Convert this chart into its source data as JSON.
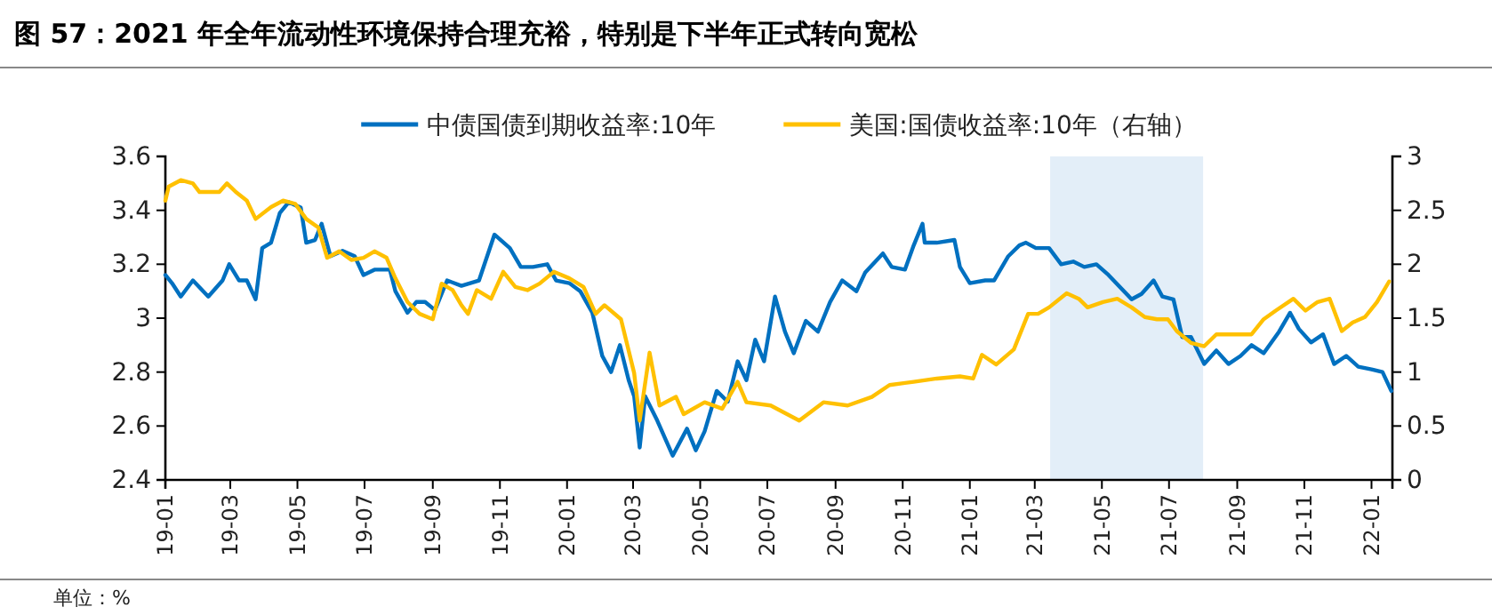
{
  "chart_data": {
    "type": "line",
    "title": "图 57：2021 年全年流动性环境保持合理充裕，特别是下半年正式转向宽松",
    "annotations": [
      "单位：%"
    ],
    "xlim": [
      "2019-01-01",
      "2022-01-20"
    ],
    "xticks": [
      {
        "value": "2019-01-01",
        "label": "19-01"
      },
      {
        "value": "2019-03-01",
        "label": "19-03"
      },
      {
        "value": "2019-05-01",
        "label": "19-05"
      },
      {
        "value": "2019-07-01",
        "label": "19-07"
      },
      {
        "value": "2019-09-01",
        "label": "19-09"
      },
      {
        "value": "2019-11-01",
        "label": "19-11"
      },
      {
        "value": "2020-01-01",
        "label": "20-01"
      },
      {
        "value": "2020-03-01",
        "label": "20-03"
      },
      {
        "value": "2020-05-01",
        "label": "20-05"
      },
      {
        "value": "2020-07-01",
        "label": "20-07"
      },
      {
        "value": "2020-09-01",
        "label": "20-09"
      },
      {
        "value": "2020-11-01",
        "label": "20-11"
      },
      {
        "value": "2021-01-01",
        "label": "21-01"
      },
      {
        "value": "2021-03-01",
        "label": "21-03"
      },
      {
        "value": "2021-05-01",
        "label": "21-05"
      },
      {
        "value": "2021-07-01",
        "label": "21-07"
      },
      {
        "value": "2021-09-01",
        "label": "21-09"
      },
      {
        "value": "2021-11-01",
        "label": "21-11"
      },
      {
        "value": "2022-01-01",
        "label": "22-01"
      }
    ],
    "ylim": [
      2.4,
      3.6
    ],
    "yticks": [
      2.4,
      2.6,
      2.8,
      3,
      3.2,
      3.4,
      3.6
    ],
    "y2lim": [
      0,
      3
    ],
    "y2ticks": [
      0,
      0.5,
      1,
      1.5,
      2,
      2.5,
      3
    ],
    "legend": "top",
    "grid": false,
    "line_style": "solid",
    "marker": "none",
    "bands": [
      {
        "axis": "x",
        "from": "2021-03-15",
        "to": "2021-08-01",
        "color": "#e3eef8"
      }
    ],
    "series": [
      {
        "name": "中债国债到期收益率:10年",
        "color": "#0070c0",
        "x": [
          "2019-01-01",
          "2019-01-07",
          "2019-01-15",
          "2019-01-26",
          "2019-02-09",
          "2019-02-22",
          "2019-02-28",
          "2019-03-09",
          "2019-03-16",
          "2019-03-24",
          "2019-03-30",
          "2019-04-07",
          "2019-04-15",
          "2019-04-23",
          "2019-05-04",
          "2019-05-09",
          "2019-05-17",
          "2019-05-23",
          "2019-05-31",
          "2019-06-11",
          "2019-06-22",
          "2019-06-30",
          "2019-07-10",
          "2019-07-24",
          "2019-07-29",
          "2019-08-09",
          "2019-08-17",
          "2019-08-25",
          "2019-09-03",
          "2019-09-14",
          "2019-09-27",
          "2019-10-13",
          "2019-10-27",
          "2019-11-10",
          "2019-11-20",
          "2019-12-01",
          "2019-12-14",
          "2019-12-22",
          "2020-01-03",
          "2020-01-13",
          "2020-01-24",
          "2020-02-02",
          "2020-02-10",
          "2020-02-18",
          "2020-02-26",
          "2020-03-02",
          "2020-03-07",
          "2020-03-12",
          "2020-03-23",
          "2020-04-06",
          "2020-04-19",
          "2020-04-27",
          "2020-05-05",
          "2020-05-16",
          "2020-05-26",
          "2020-06-04",
          "2020-06-12",
          "2020-06-20",
          "2020-06-28",
          "2020-07-08",
          "2020-07-17",
          "2020-07-25",
          "2020-08-05",
          "2020-08-16",
          "2020-08-27",
          "2020-09-07",
          "2020-09-20",
          "2020-09-28",
          "2020-10-14",
          "2020-10-22",
          "2020-11-03",
          "2020-11-11",
          "2020-11-19",
          "2020-11-21",
          "2020-12-02",
          "2020-12-18",
          "2020-12-23",
          "2021-01-01",
          "2021-01-15",
          "2021-01-23",
          "2021-02-05",
          "2021-02-15",
          "2021-02-21",
          "2021-03-02",
          "2021-03-14",
          "2021-03-25",
          "2021-04-05",
          "2021-04-15",
          "2021-04-26",
          "2021-05-07",
          "2021-05-28",
          "2021-06-06",
          "2021-06-17",
          "2021-06-25",
          "2021-07-05",
          "2021-07-13",
          "2021-07-21",
          "2021-08-02",
          "2021-08-13",
          "2021-08-24",
          "2021-09-04",
          "2021-09-14",
          "2021-09-25",
          "2021-10-09",
          "2021-10-19",
          "2021-10-27",
          "2021-11-07",
          "2021-11-18",
          "2021-11-28",
          "2021-12-09",
          "2021-12-20",
          "2022-01-01",
          "2022-01-11",
          "2022-01-19"
        ],
        "values": [
          3.16,
          3.13,
          3.08,
          3.14,
          3.08,
          3.14,
          3.2,
          3.14,
          3.14,
          3.07,
          3.26,
          3.28,
          3.39,
          3.43,
          3.41,
          3.28,
          3.29,
          3.35,
          3.23,
          3.25,
          3.23,
          3.16,
          3.18,
          3.18,
          3.1,
          3.02,
          3.06,
          3.06,
          3.03,
          3.14,
          3.12,
          3.14,
          3.31,
          3.26,
          3.19,
          3.19,
          3.2,
          3.14,
          3.13,
          3.1,
          3.02,
          2.86,
          2.8,
          2.9,
          2.77,
          2.71,
          2.52,
          2.71,
          2.62,
          2.49,
          2.59,
          2.51,
          2.58,
          2.73,
          2.69,
          2.84,
          2.77,
          2.92,
          2.84,
          3.08,
          2.95,
          2.87,
          2.99,
          2.95,
          3.06,
          3.14,
          3.1,
          3.17,
          3.24,
          3.19,
          3.18,
          3.27,
          3.35,
          3.28,
          3.28,
          3.29,
          3.19,
          3.13,
          3.14,
          3.14,
          3.23,
          3.27,
          3.28,
          3.26,
          3.26,
          3.2,
          3.21,
          3.19,
          3.2,
          3.16,
          3.07,
          3.09,
          3.14,
          3.08,
          3.07,
          2.93,
          2.93,
          2.83,
          2.88,
          2.83,
          2.86,
          2.9,
          2.87,
          2.95,
          3.02,
          2.96,
          2.91,
          2.94,
          2.83,
          2.86,
          2.82,
          2.81,
          2.8,
          2.73
        ]
      },
      {
        "name": "美国:国债收益率:10年（右轴）",
        "color": "#ffc000",
        "axis": "y2",
        "x": [
          "2019-01-01",
          "2019-01-04",
          "2019-01-15",
          "2019-01-26",
          "2019-02-01",
          "2019-02-09",
          "2019-02-19",
          "2019-02-26",
          "2019-03-06",
          "2019-03-16",
          "2019-03-24",
          "2019-04-07",
          "2019-04-18",
          "2019-04-29",
          "2019-05-09",
          "2019-05-20",
          "2019-05-28",
          "2019-06-08",
          "2019-06-19",
          "2019-06-30",
          "2019-07-10",
          "2019-07-21",
          "2019-07-29",
          "2019-08-09",
          "2019-08-20",
          "2019-09-01",
          "2019-09-09",
          "2019-09-19",
          "2019-09-27",
          "2019-10-03",
          "2019-10-11",
          "2019-10-24",
          "2019-11-04",
          "2019-11-15",
          "2019-11-26",
          "2019-12-07",
          "2019-12-20",
          "2020-01-03",
          "2020-01-16",
          "2020-01-27",
          "2020-02-04",
          "2020-02-19",
          "2020-03-02",
          "2020-03-07",
          "2020-03-16",
          "2020-03-25",
          "2020-04-09",
          "2020-04-16",
          "2020-05-05",
          "2020-05-21",
          "2020-06-04",
          "2020-06-12",
          "2020-07-04",
          "2020-07-30",
          "2020-08-21",
          "2020-09-12",
          "2020-10-04",
          "2020-10-20",
          "2020-11-11",
          "2020-12-02",
          "2020-12-23",
          "2021-01-04",
          "2021-01-12",
          "2021-01-25",
          "2021-02-10",
          "2021-02-23",
          "2021-03-04",
          "2021-03-14",
          "2021-03-30",
          "2021-04-10",
          "2021-04-18",
          "2021-05-02",
          "2021-05-15",
          "2021-05-28",
          "2021-06-09",
          "2021-06-20",
          "2021-06-30",
          "2021-07-08",
          "2021-07-21",
          "2021-08-02",
          "2021-08-13",
          "2021-08-29",
          "2021-09-14",
          "2021-09-25",
          "2021-10-06",
          "2021-10-22",
          "2021-11-02",
          "2021-11-13",
          "2021-11-24",
          "2021-12-05",
          "2021-12-15",
          "2021-12-26",
          "2022-01-06",
          "2022-01-17"
        ],
        "values": [
          2.59,
          2.72,
          2.78,
          2.75,
          2.67,
          2.67,
          2.67,
          2.75,
          2.67,
          2.59,
          2.42,
          2.53,
          2.59,
          2.56,
          2.42,
          2.34,
          2.06,
          2.12,
          2.04,
          2.06,
          2.12,
          2.06,
          1.87,
          1.65,
          1.54,
          1.49,
          1.82,
          1.76,
          1.62,
          1.54,
          1.76,
          1.68,
          1.93,
          1.79,
          1.76,
          1.82,
          1.93,
          1.87,
          1.79,
          1.54,
          1.62,
          1.49,
          0.99,
          0.55,
          1.18,
          0.69,
          0.77,
          0.61,
          0.72,
          0.66,
          0.91,
          0.72,
          0.69,
          0.55,
          0.72,
          0.69,
          0.77,
          0.88,
          0.91,
          0.94,
          0.96,
          0.94,
          1.16,
          1.07,
          1.21,
          1.54,
          1.54,
          1.6,
          1.73,
          1.68,
          1.6,
          1.65,
          1.68,
          1.6,
          1.51,
          1.49,
          1.49,
          1.38,
          1.27,
          1.24,
          1.35,
          1.35,
          1.35,
          1.49,
          1.57,
          1.68,
          1.57,
          1.65,
          1.68,
          1.38,
          1.46,
          1.51,
          1.65,
          1.84
        ]
      }
    ]
  }
}
